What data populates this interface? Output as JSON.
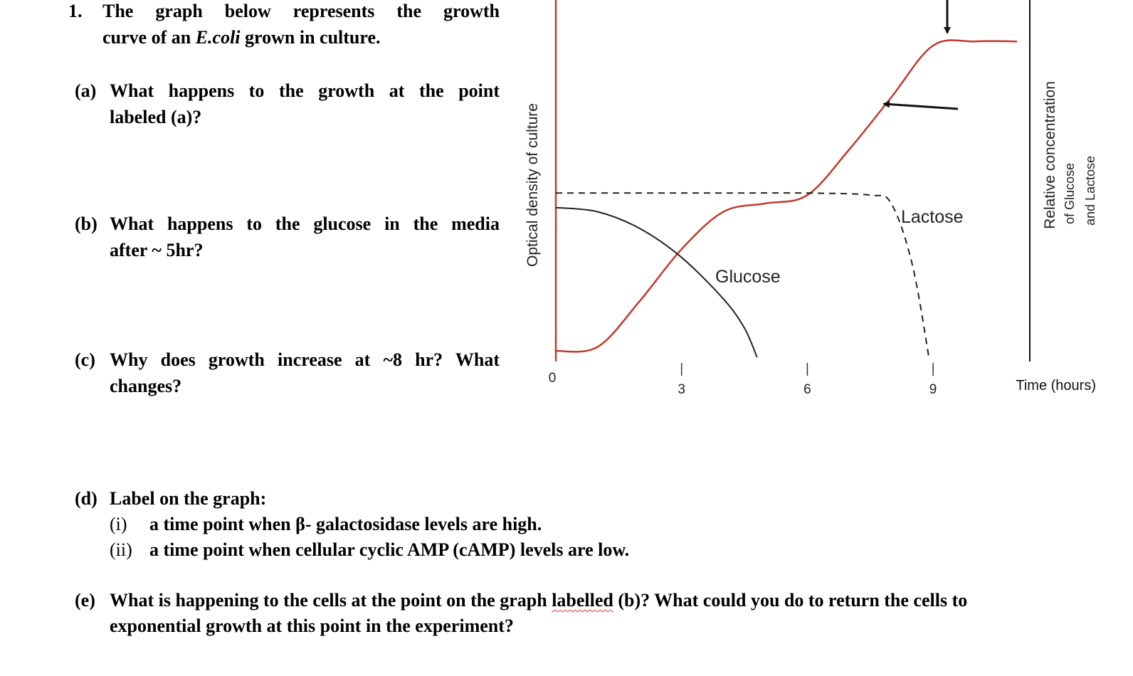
{
  "question": {
    "number": "1.",
    "intro_line1": "The graph below represents the growth",
    "intro_line2_pre": "curve of an ",
    "intro_line2_italic": "E.coli",
    "intro_line2_post": " grown in culture.",
    "a": {
      "label": "(a)",
      "line1": "What happens to the growth at the point",
      "line2": "labeled (a)?"
    },
    "b": {
      "label": "(b)",
      "line1": "What happens to the glucose in the media",
      "line2": "after ~ 5hr?"
    },
    "c": {
      "label": "(c)",
      "line1": "Why does growth increase at ~8 hr? What",
      "line2": "changes?"
    },
    "d": {
      "label": "(d)",
      "heading": "Label on the graph:",
      "items": [
        {
          "roman": "(i)",
          "text": "a time point when β- galactosidase levels are high."
        },
        {
          "roman": "(ii)",
          "text": "a time point when cellular cyclic AMP (cAMP) levels are low."
        }
      ]
    },
    "e": {
      "label": "(e)",
      "line1_pre": "What is happening to the cells at the point on the graph ",
      "line1_mark": "labelled",
      "line1_post": " (b)? What could you do to return the cells to",
      "line2": "exponential growth at this point in the experiment?"
    }
  },
  "chart_data": {
    "type": "line",
    "xlabel": "Time (hours)",
    "ylabel_left": "Optical density of culture",
    "ylabel_right_line1": "Relative concentration",
    "ylabel_right_line2": "of  Glucose",
    "ylabel_right_line3": "and  Lactose",
    "x_ticks": [
      "0",
      "3",
      "6",
      "9"
    ],
    "xlim": [
      0,
      11.3
    ],
    "series": [
      {
        "name": "",
        "role": "Optical density (growth curve)",
        "color": "#c0392b",
        "style": "solid",
        "x": [
          0,
          1,
          2,
          3,
          4,
          5,
          6,
          7,
          8,
          9,
          10,
          11
        ],
        "y": [
          0.03,
          0.05,
          0.27,
          0.52,
          0.7,
          0.74,
          0.78,
          1.0,
          1.25,
          1.5,
          1.52,
          1.52
        ]
      },
      {
        "name": "Glucose",
        "role": "Relative concentration",
        "color": "#222222",
        "style": "solid",
        "x": [
          0,
          1,
          2,
          3,
          4,
          4.5,
          4.8
        ],
        "y": [
          0.72,
          0.7,
          0.62,
          0.48,
          0.28,
          0.14,
          0.0
        ]
      },
      {
        "name": "Lactose",
        "role": "Relative concentration",
        "color": "#222222",
        "style": "dashed",
        "x": [
          0,
          2,
          4,
          6,
          7.5,
          8,
          8.5,
          8.9
        ],
        "y": [
          0.79,
          0.79,
          0.79,
          0.79,
          0.78,
          0.74,
          0.45,
          0.0
        ]
      }
    ],
    "annotations": [
      {
        "type": "arrow",
        "label": "",
        "points_to": "plateau near 9 hr"
      },
      {
        "type": "arrow",
        "label": "",
        "points_to": "rising curve near 8 hr"
      }
    ]
  }
}
